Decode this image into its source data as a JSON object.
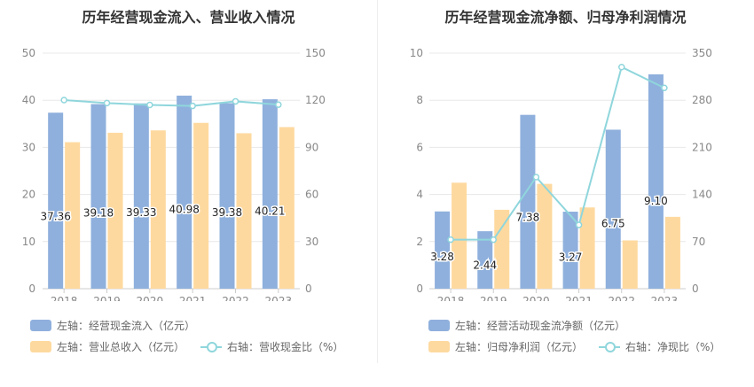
{
  "colors": {
    "bar_primary": "#8fb0dd",
    "bar_secondary": "#fed99f",
    "line": "#8fd6dc",
    "axis_text": "#888888",
    "grid": "#e8e8e8"
  },
  "chart_data": [
    {
      "type": "bar",
      "title": "历年经营现金流入、营业收入情况",
      "categories": [
        "2018",
        "2019",
        "2020",
        "2021",
        "2022",
        "2023"
      ],
      "y_left": {
        "ticks": [
          "0",
          "10",
          "20",
          "30",
          "40",
          "50"
        ],
        "ylim": [
          0,
          50
        ]
      },
      "y_right": {
        "ticks": [
          "0",
          "30",
          "60",
          "90",
          "120",
          "150"
        ],
        "ylim": [
          0,
          150
        ]
      },
      "series": [
        {
          "name": "左轴：经营现金流入（亿元）",
          "axis": "left",
          "kind": "bar",
          "values": [
            37.36,
            39.18,
            39.33,
            40.98,
            39.38,
            40.21
          ],
          "labels": [
            "37.36",
            "39.18",
            "39.33",
            "40.98",
            "39.38",
            "40.21"
          ]
        },
        {
          "name": "左轴：营业总收入（亿元）",
          "axis": "left",
          "kind": "bar",
          "values": [
            31.1,
            33.1,
            33.6,
            35.2,
            33.0,
            34.3
          ]
        },
        {
          "name": "右轴：营收现金比（%）",
          "axis": "right",
          "kind": "line",
          "values": [
            120.1,
            118.2,
            117.0,
            116.4,
            119.3,
            117.2
          ]
        }
      ],
      "grid": true,
      "legend": "bottom"
    },
    {
      "type": "bar",
      "title": "历年经营现金流净额、归母净利润情况",
      "categories": [
        "2018",
        "2019",
        "2020",
        "2021",
        "2022",
        "2023"
      ],
      "y_left": {
        "ticks": [
          "0",
          "2",
          "4",
          "6",
          "8",
          "10"
        ],
        "ylim": [
          0,
          10
        ]
      },
      "y_right": {
        "ticks": [
          "0",
          "70",
          "140",
          "210",
          "280",
          "350"
        ],
        "ylim": [
          0,
          350
        ]
      },
      "series": [
        {
          "name": "左轴：经营活动现金流净额（亿元）",
          "axis": "left",
          "kind": "bar",
          "values": [
            3.28,
            2.44,
            7.38,
            3.27,
            6.75,
            9.1
          ],
          "labels": [
            "3.28",
            "2.44",
            "7.38",
            "3.27",
            "6.75",
            "9.10"
          ]
        },
        {
          "name": "左轴：归母净利润（亿元）",
          "axis": "left",
          "kind": "bar",
          "values": [
            4.5,
            3.35,
            4.45,
            3.45,
            2.05,
            3.05
          ]
        },
        {
          "name": "右轴：净现比（%）",
          "axis": "right",
          "kind": "line",
          "values": [
            72.9,
            72.8,
            165.8,
            94.8,
            329.3,
            298.4
          ]
        }
      ],
      "grid": true,
      "legend": "bottom"
    }
  ]
}
